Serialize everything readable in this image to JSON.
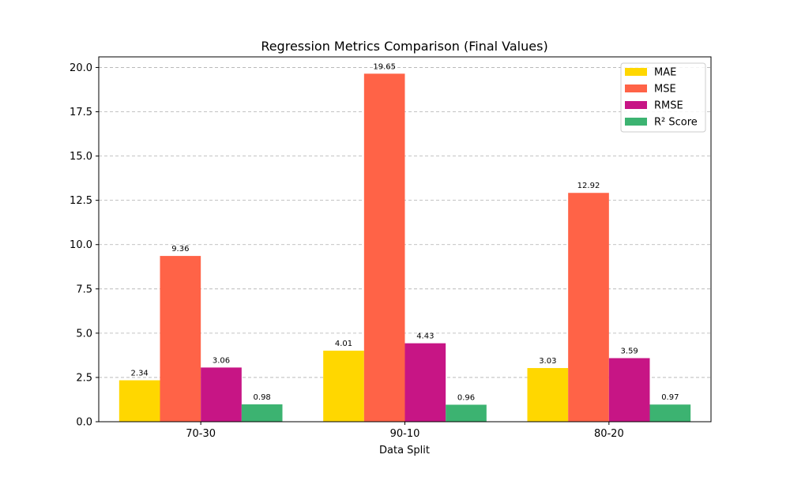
{
  "chart_data": {
    "type": "bar",
    "title": "Regression Metrics Comparison (Final Values)",
    "xlabel": "Data Split",
    "ylabel": "",
    "categories": [
      "70-30",
      "90-10",
      "80-20"
    ],
    "ylim": [
      0,
      20.6
    ],
    "yticks": [
      0.0,
      2.5,
      5.0,
      7.5,
      10.0,
      12.5,
      15.0,
      17.5,
      20.0
    ],
    "ytick_labels": [
      "0.0",
      "2.5",
      "5.0",
      "7.5",
      "10.0",
      "12.5",
      "15.0",
      "17.5",
      "20.0"
    ],
    "grid": "y-dashed",
    "legend_position": "top-right",
    "series": [
      {
        "name": "MAE",
        "color": "#FFD700",
        "values": [
          2.34,
          4.01,
          3.03
        ],
        "labels": [
          "2.34",
          "4.01",
          "3.03"
        ]
      },
      {
        "name": "MSE",
        "color": "#FF6347",
        "values": [
          9.36,
          19.65,
          12.92
        ],
        "labels": [
          "9.36",
          "19.65",
          "12.92"
        ]
      },
      {
        "name": "RMSE",
        "color": "#C71585",
        "values": [
          3.06,
          4.43,
          3.59
        ],
        "labels": [
          "3.06",
          "4.43",
          "3.59"
        ]
      },
      {
        "name": "R² Score",
        "color": "#3CB371",
        "values": [
          0.98,
          0.96,
          0.97
        ],
        "labels": [
          "0.98",
          "0.96",
          "0.97"
        ]
      }
    ]
  }
}
